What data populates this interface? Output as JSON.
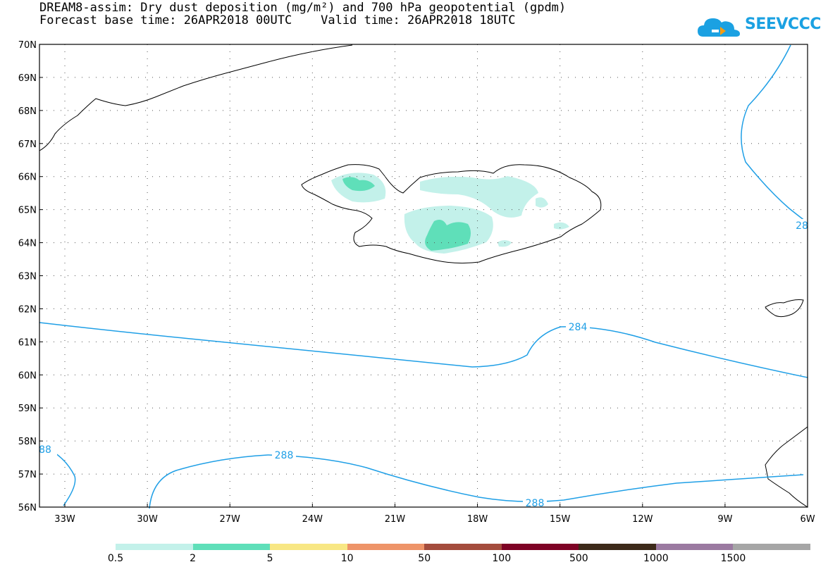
{
  "title": {
    "line1": "DREAM8-assim: Dry dust deposition (mg/m²) and 700 hPa geopotential (gpdm)",
    "line2": "Forecast base time: 26APR2018 00UTC    Valid time: 26APR2018 18UTC"
  },
  "logo": {
    "text": "SEEVCCC"
  },
  "map": {
    "lat_labels": [
      "70N",
      "69N",
      "68N",
      "67N",
      "66N",
      "65N",
      "64N",
      "63N",
      "62N",
      "61N",
      "60N",
      "59N",
      "58N",
      "57N",
      "56N"
    ],
    "lon_labels": [
      "33W",
      "30W",
      "27W",
      "24W",
      "21W",
      "18W",
      "15W",
      "12W",
      "9W",
      "6W"
    ],
    "contours": [
      {
        "level": "284",
        "label": "284"
      },
      {
        "level": "288",
        "label": "288"
      },
      {
        "level": "288",
        "label": "288"
      },
      {
        "level": "28",
        "label": "28"
      },
      {
        "level": "88",
        "label": "88"
      }
    ],
    "colors": {
      "contour": "#1f9fe6",
      "coast": "#000000",
      "grid": "#555555"
    }
  },
  "legend": {
    "labels": [
      "0.5",
      "2",
      "5",
      "10",
      "50",
      "100",
      "500",
      "1000",
      "1500"
    ],
    "colors": [
      "#c3f1ea",
      "#5fdfb9",
      "#f8e784",
      "#ee9469",
      "#a44c3d",
      "#7e0325",
      "#3d2a1a",
      "#9b7aa1",
      "#a6a6a6"
    ]
  }
}
